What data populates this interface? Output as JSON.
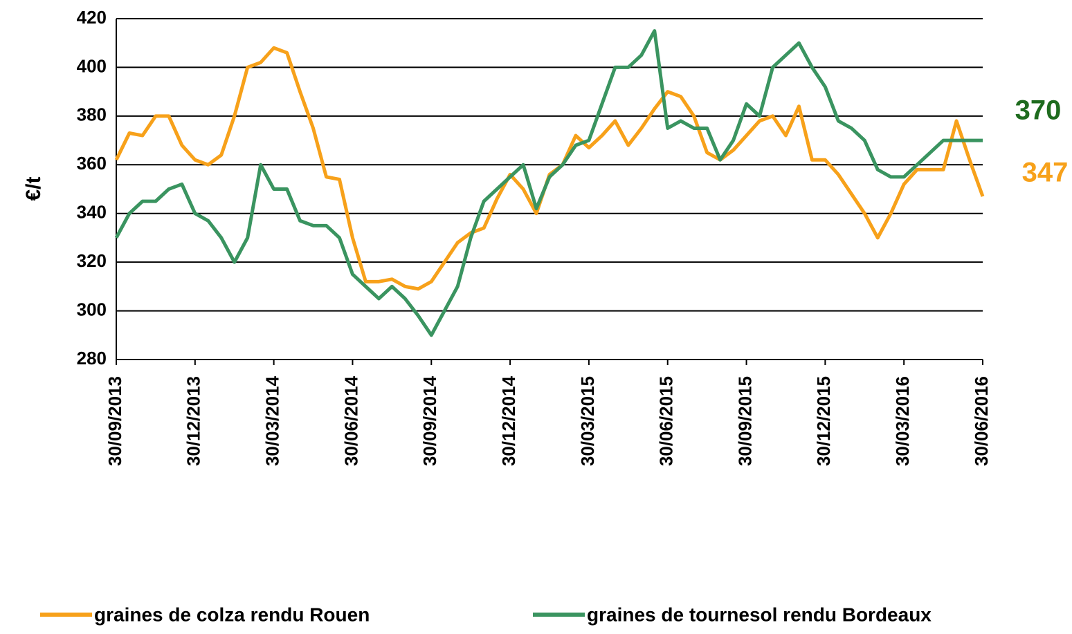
{
  "chart_data": {
    "type": "line",
    "y_label": "€/t",
    "categories": [
      "30/09/2013",
      null,
      null,
      null,
      null,
      null,
      "30/12/2013",
      null,
      null,
      null,
      null,
      null,
      "30/03/2014",
      null,
      null,
      null,
      null,
      null,
      "30/06/2014",
      null,
      null,
      null,
      null,
      null,
      "30/09/2014",
      null,
      null,
      null,
      null,
      null,
      "30/12/2014",
      null,
      null,
      null,
      null,
      null,
      "30/03/2015",
      null,
      null,
      null,
      null,
      null,
      "30/06/2015",
      null,
      null,
      null,
      null,
      null,
      "30/09/2015",
      null,
      null,
      null,
      null,
      null,
      "30/12/2015",
      null,
      null,
      null,
      null,
      null,
      "30/03/2016",
      null,
      null,
      null,
      null,
      null,
      "30/06/2016"
    ],
    "series": [
      {
        "name": "graines de colza rendu Rouen",
        "color": "#f7a11a",
        "values": [
          362,
          373,
          372,
          380,
          380,
          368,
          362,
          360,
          364,
          380,
          400,
          402,
          408,
          406,
          390,
          375,
          355,
          354,
          330,
          312,
          312,
          313,
          310,
          309,
          312,
          320,
          328,
          332,
          334,
          346,
          356,
          350,
          340,
          356,
          360,
          372,
          367,
          372,
          378,
          368,
          375,
          383,
          390,
          388,
          380,
          365,
          362,
          366,
          372,
          378,
          380,
          372,
          384,
          362,
          362,
          356,
          348,
          340,
          330,
          340,
          352,
          358,
          358,
          358,
          378,
          362,
          347
        ]
      },
      {
        "name": "graines de tournesol rendu Bordeaux",
        "color": "#3a9460",
        "values": [
          330,
          340,
          345,
          345,
          350,
          352,
          340,
          337,
          330,
          320,
          330,
          360,
          350,
          350,
          337,
          335,
          335,
          330,
          315,
          310,
          305,
          310,
          305,
          298,
          290,
          300,
          310,
          330,
          345,
          350,
          355,
          360,
          342,
          355,
          360,
          368,
          370,
          385,
          400,
          400,
          405,
          415,
          375,
          378,
          375,
          375,
          362,
          370,
          385,
          380,
          400,
          405,
          410,
          400,
          392,
          378,
          375,
          370,
          358,
          355,
          355,
          360,
          365,
          370,
          370,
          370,
          370
        ]
      }
    ],
    "annotations": [
      {
        "text": "370",
        "color": "#1e6b1e"
      },
      {
        "text": "347",
        "color": "#f7a11a"
      }
    ],
    "ylim": [
      280,
      420
    ],
    "yticks": [
      280,
      300,
      320,
      340,
      360,
      380,
      400,
      420
    ],
    "grid": true
  }
}
